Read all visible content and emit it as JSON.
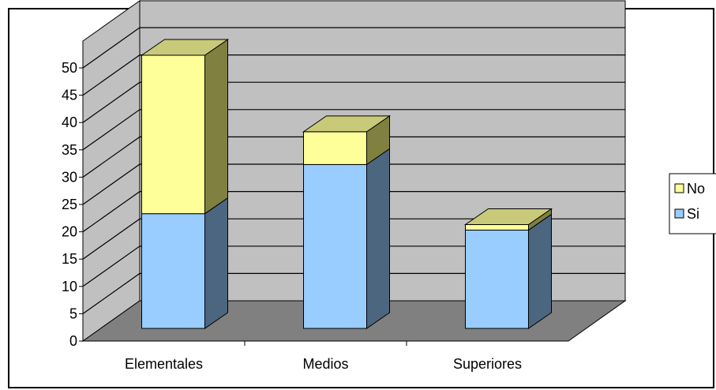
{
  "chart_data": {
    "type": "bar",
    "stacked": true,
    "three_d": true,
    "categories": [
      "Elementales",
      "Medios",
      "Superiores"
    ],
    "series": [
      {
        "name": "Si",
        "values": [
          21,
          30,
          18
        ],
        "color": "#99CCFF",
        "side_color": "#4D6680",
        "top_color": "#99CCFF"
      },
      {
        "name": "No",
        "values": [
          29,
          6,
          1
        ],
        "color": "#FFFF99",
        "side_color": "#808040",
        "top_color": "#C9C97A"
      }
    ],
    "y_ticks": [
      "0",
      "5",
      "10",
      "15",
      "20",
      "25",
      "30",
      "35",
      "40",
      "45",
      "50"
    ],
    "ylim": [
      0,
      50
    ],
    "grid": true,
    "legend": {
      "position": "right",
      "entries": [
        "No",
        "Si"
      ]
    },
    "colors": {
      "wall": "#C0C0C0",
      "floor": "#808080",
      "grid": "#000000"
    }
  }
}
